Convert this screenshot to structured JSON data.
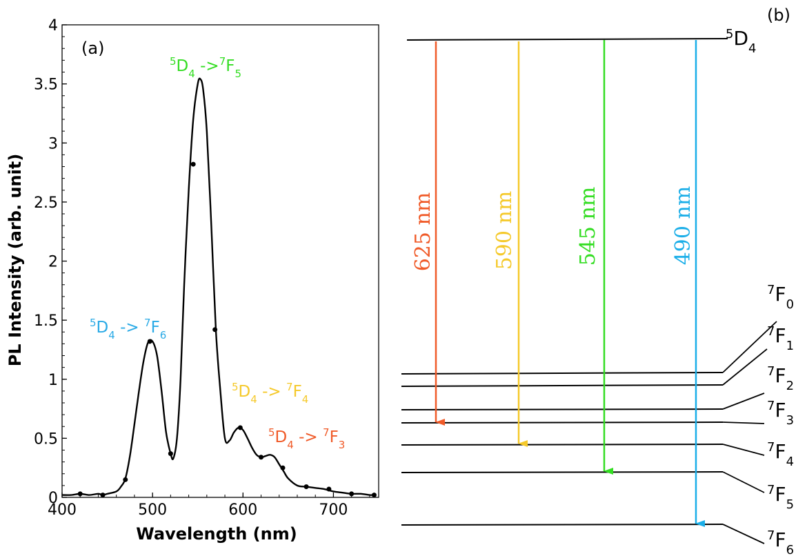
{
  "panels": {
    "a_label": "(a)",
    "b_label": "(b)"
  },
  "chart_data": {
    "type": "line",
    "title": "",
    "xlabel": "Wavelength (nm)",
    "ylabel": "PL Intensity (arb. unit)",
    "xlim": [
      400,
      750
    ],
    "ylim": [
      0,
      4
    ],
    "x_ticks": [
      400,
      500,
      600,
      700
    ],
    "y_ticks": [
      0,
      0.5,
      1,
      1.5,
      2,
      2.5,
      3,
      3.5,
      4
    ],
    "grid": false,
    "series": [
      {
        "color": "#000000",
        "x": [
          400,
          410,
          420,
          430,
          440,
          445,
          450,
          460,
          465,
          470,
          475,
          480,
          485,
          490,
          495,
          500,
          505,
          510,
          515,
          520,
          523,
          527,
          531,
          535,
          540,
          545,
          550,
          553,
          556,
          560,
          565,
          570,
          575,
          580,
          585,
          590,
          595,
          600,
          605,
          610,
          615,
          620,
          625,
          630,
          635,
          640,
          645,
          650,
          660,
          670,
          680,
          690,
          700,
          710,
          720,
          730,
          740,
          745
        ],
        "y": [
          0.02,
          0.02,
          0.03,
          0.02,
          0.03,
          0.02,
          0.03,
          0.05,
          0.09,
          0.16,
          0.35,
          0.62,
          0.9,
          1.15,
          1.31,
          1.32,
          1.2,
          0.9,
          0.55,
          0.37,
          0.33,
          0.5,
          1.0,
          1.8,
          2.6,
          3.2,
          3.5,
          3.54,
          3.45,
          3.1,
          2.3,
          1.42,
          0.9,
          0.5,
          0.48,
          0.55,
          0.59,
          0.57,
          0.5,
          0.42,
          0.36,
          0.34,
          0.35,
          0.36,
          0.34,
          0.28,
          0.22,
          0.16,
          0.1,
          0.09,
          0.08,
          0.07,
          0.05,
          0.04,
          0.03,
          0.03,
          0.02,
          0.02
        ]
      }
    ],
    "markers": {
      "x": [
        420,
        445,
        470,
        497,
        520,
        545,
        569,
        597,
        620,
        644,
        670,
        695,
        720,
        745
      ],
      "y": [
        0.03,
        0.02,
        0.15,
        1.32,
        0.37,
        2.82,
        1.42,
        0.59,
        0.34,
        0.25,
        0.09,
        0.07,
        0.03,
        0.02
      ]
    },
    "annotations": [
      {
        "pre": "5",
        "main": "D",
        "sub": "4",
        "mid": " -> ",
        "pre2": "7",
        "main2": "F",
        "sub2": "6",
        "color": "#2aaae6"
      },
      {
        "pre": "5",
        "main": "D",
        "sub": "4",
        "mid": " ->",
        "pre2": "7",
        "main2": "F",
        "sub2": "5",
        "color": "#33dd22"
      },
      {
        "pre": "5",
        "main": "D",
        "sub": "4",
        "mid": " -> ",
        "pre2": "7",
        "main2": "F",
        "sub2": "4",
        "color": "#f5c92a"
      },
      {
        "pre": "5",
        "main": "D",
        "sub": "4",
        "mid": " -> ",
        "pre2": "7",
        "main2": "F",
        "sub2": "3",
        "color": "#f05a28"
      }
    ]
  },
  "energy_diagram": {
    "upper_level": {
      "pre": "5",
      "main": "D",
      "sub": "4"
    },
    "lower_levels": [
      {
        "pre": "7",
        "main": "F",
        "sub": "0"
      },
      {
        "pre": "7",
        "main": "F",
        "sub": "1"
      },
      {
        "pre": "7",
        "main": "F",
        "sub": "2"
      },
      {
        "pre": "7",
        "main": "F",
        "sub": "3"
      },
      {
        "pre": "7",
        "main": "F",
        "sub": "4"
      },
      {
        "pre": "7",
        "main": "F",
        "sub": "5"
      },
      {
        "pre": "7",
        "main": "F",
        "sub": "6"
      }
    ],
    "transitions": [
      {
        "label": "625 nm",
        "color": "#f05a28"
      },
      {
        "label": "590 nm",
        "color": "#f5c92a"
      },
      {
        "label": "545 nm",
        "color": "#33dd22"
      },
      {
        "label": "490 nm",
        "color": "#1aaee8"
      }
    ]
  }
}
